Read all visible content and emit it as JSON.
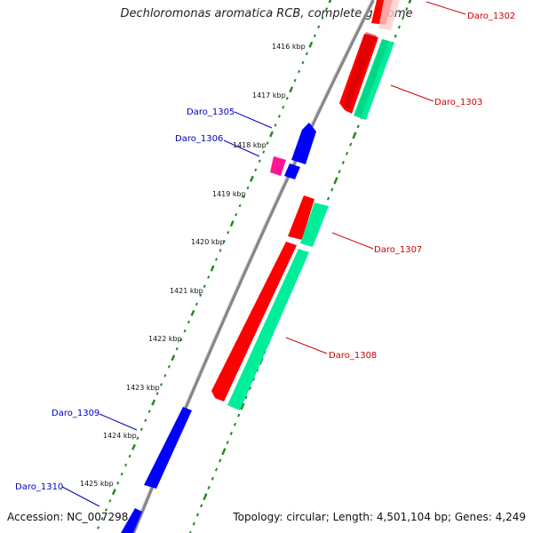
{
  "title": "Dechloromonas aromatica RCB, complete genome",
  "footer": {
    "accession": "Accession: NC_007298",
    "summary": "Topology: circular; Length: 4,501,104 bp; Genes: 4,249"
  },
  "colors": {
    "forward_cds": "#ff0000",
    "forward_cds_light": "#ffcccc",
    "reverse_cds": "#0000ff",
    "rna_feature": "#ff1493",
    "secondary_feature": "#00ee99",
    "backbone": "#888888",
    "tick": "#228b22",
    "label_red": "#cc0000",
    "label_blue": "#0000bb"
  },
  "ticks": [
    "1416 kbp",
    "1417 kbp",
    "1418 kbp",
    "1419 kbp",
    "1420 kbp",
    "1421 kbp",
    "1422 kbp",
    "1423 kbp",
    "1424 kbp",
    "1425 kbp"
  ],
  "gene_labels": {
    "right": [
      "Daro_1302",
      "Daro_1303",
      "Daro_1307",
      "Daro_1308"
    ],
    "left": [
      "Daro_1305",
      "Daro_1306",
      "Daro_1309",
      "Daro_1310"
    ]
  }
}
